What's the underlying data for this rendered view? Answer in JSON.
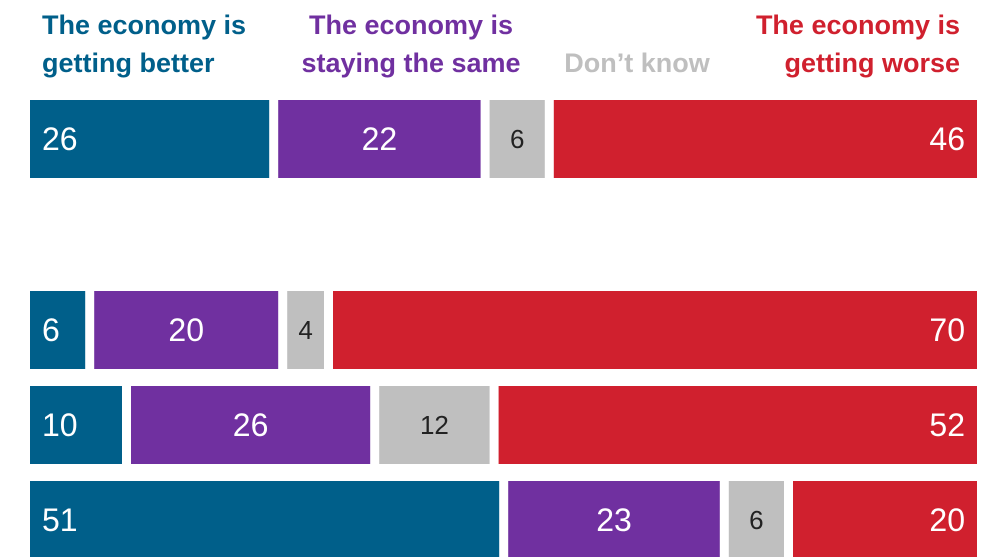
{
  "chart_data": {
    "type": "bar",
    "orientation": "horizontal",
    "stacked": true,
    "normalized": true,
    "legend_placement": "top",
    "grid": false,
    "series": [
      {
        "name": "The economy is getting better",
        "label_lines": [
          "The economy is",
          "getting better"
        ],
        "color": "#005f8a",
        "values": [
          26,
          6,
          10,
          51
        ]
      },
      {
        "name": "The economy is staying the same",
        "label_lines": [
          "The economy is",
          "staying the same"
        ],
        "color": "#7030a0",
        "values": [
          22,
          20,
          26,
          23
        ]
      },
      {
        "name": "Don’t know",
        "label_lines": [
          "Don’t know"
        ],
        "color": "#bfbfbf",
        "values": [
          6,
          4,
          12,
          6
        ]
      },
      {
        "name": "The economy is getting worse",
        "label_lines": [
          "The economy is",
          "getting worse"
        ],
        "color": "#d0202e",
        "values": [
          46,
          70,
          52,
          20
        ]
      }
    ],
    "value_label_colors": [
      "#ffffff",
      "#ffffff",
      "#222222",
      "#ffffff"
    ]
  }
}
